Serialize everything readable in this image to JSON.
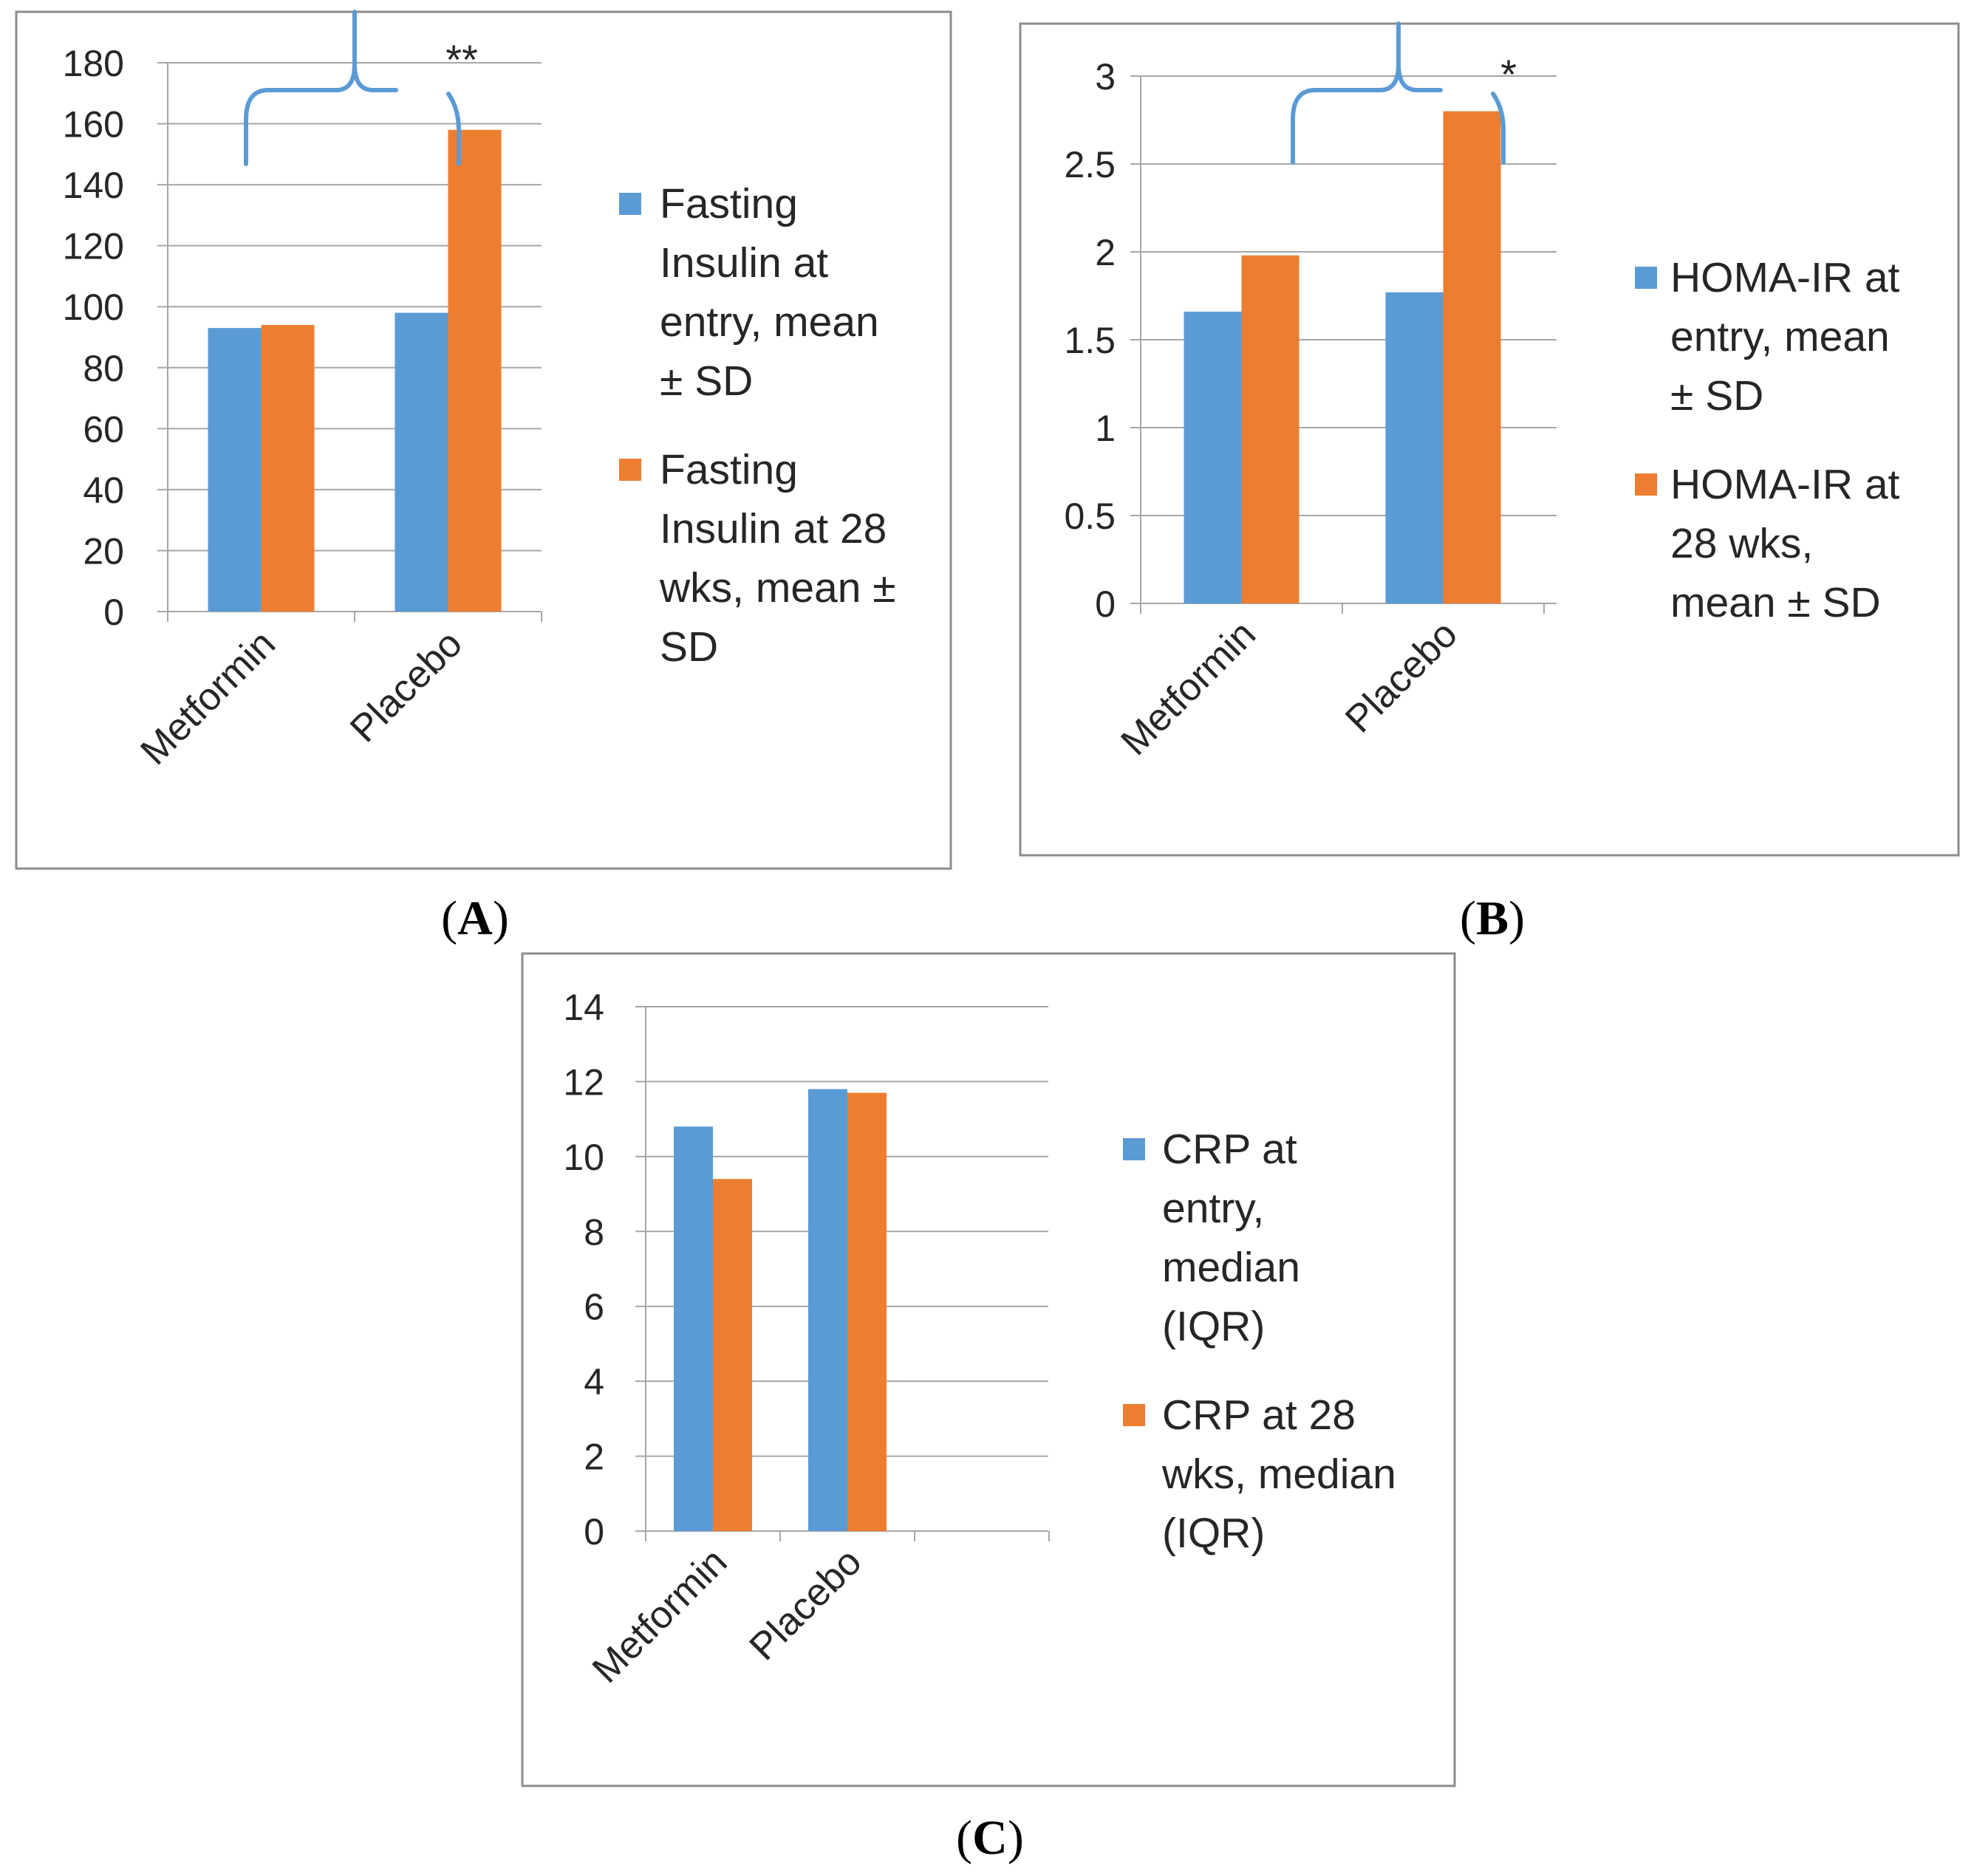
{
  "colors": {
    "series1": "#5B9BD5",
    "series2": "#ED7D31",
    "grid": "#A6A6A6",
    "frame": "#8C8C8C",
    "text": "#262626"
  },
  "chart_data": [
    {
      "id": "A",
      "panel_label": {
        "open": "(",
        "letter": "A",
        "close": ")"
      },
      "type": "bar",
      "categories": [
        "Metformin",
        "Placebo"
      ],
      "series": [
        {
          "name": "Fasting Insulin at entry, mean ± SD",
          "values": [
            93,
            98
          ],
          "legend_lines": [
            "Fasting",
            "Insulin at",
            "entry, mean",
            "± SD"
          ]
        },
        {
          "name": "Fasting Insulin at 28 wks, mean ± SD",
          "values": [
            94,
            158
          ],
          "legend_lines": [
            "Fasting",
            "Insulin at 28",
            "wks, mean ±",
            "SD"
          ]
        }
      ],
      "ylim": [
        0,
        180
      ],
      "yticks": [
        "0",
        "20",
        "40",
        "60",
        "80",
        "100",
        "120",
        "140",
        "160",
        "180"
      ],
      "annotation": "**",
      "title": "",
      "xlabel": "",
      "ylabel": ""
    },
    {
      "id": "B",
      "panel_label": {
        "open": "(",
        "letter": "B",
        "close": ")"
      },
      "type": "bar",
      "categories": [
        "Metformin",
        "Placebo"
      ],
      "series": [
        {
          "name": "HOMA-IR at entry, mean ± SD",
          "values": [
            1.66,
            1.77
          ],
          "legend_lines": [
            "HOMA-IR at",
            "entry, mean",
            "± SD"
          ]
        },
        {
          "name": "HOMA-IR at 28 wks, mean ± SD",
          "values": [
            1.98,
            2.8
          ],
          "legend_lines": [
            "HOMA-IR at",
            "28 wks,",
            "mean ± SD"
          ]
        }
      ],
      "ylim": [
        0,
        3
      ],
      "yticks": [
        "0",
        "0.5",
        "1",
        "1.5",
        "2",
        "2.5",
        "3"
      ],
      "annotation": "*",
      "title": "",
      "xlabel": "",
      "ylabel": ""
    },
    {
      "id": "C",
      "panel_label": {
        "open": "(",
        "letter": "C",
        "close": ")"
      },
      "type": "bar",
      "categories": [
        "Metformin",
        "Placebo",
        ""
      ],
      "series": [
        {
          "name": "CRP at entry, median (IQR)",
          "values": [
            10.8,
            11.8,
            null
          ],
          "legend_lines": [
            "CRP at",
            "entry,",
            "median",
            "(IQR)"
          ]
        },
        {
          "name": "CRP at 28 wks, median (IQR)",
          "values": [
            9.4,
            11.7,
            null
          ],
          "legend_lines": [
            "CRP at 28",
            "wks, median",
            "(IQR)"
          ]
        }
      ],
      "ylim": [
        0,
        14
      ],
      "yticks": [
        "0",
        "2",
        "4",
        "6",
        "8",
        "10",
        "12",
        "14"
      ],
      "annotation": "",
      "title": "",
      "xlabel": "",
      "ylabel": ""
    }
  ]
}
